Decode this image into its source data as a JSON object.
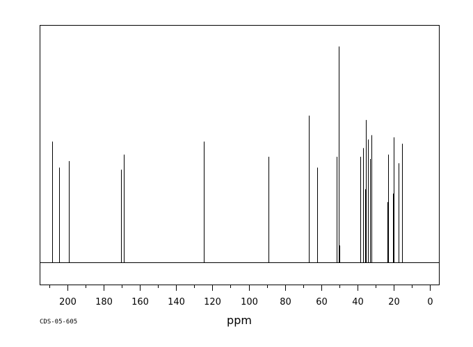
{
  "chart_data": {
    "type": "line",
    "subtype": "nmr-stick-spectrum",
    "title": "",
    "xlabel": "ppm",
    "ylabel": "",
    "xlim": [
      215,
      -5
    ],
    "x_reversed": true,
    "ylim": [
      0,
      1.1
    ],
    "grid": false,
    "x_ticks": [
      200,
      180,
      160,
      140,
      120,
      100,
      80,
      60,
      40,
      20,
      0
    ],
    "x_minor_step": 10,
    "peaks": [
      {
        "ppm": 208.5,
        "height": 0.56
      },
      {
        "ppm": 204.5,
        "height": 0.44
      },
      {
        "ppm": 199.2,
        "height": 0.47
      },
      {
        "ppm": 170.3,
        "height": 0.43
      },
      {
        "ppm": 168.8,
        "height": 0.5
      },
      {
        "ppm": 124.8,
        "height": 0.05
      },
      {
        "ppm": 124.6,
        "height": 0.56
      },
      {
        "ppm": 89.2,
        "height": 0.49
      },
      {
        "ppm": 66.8,
        "height": 0.68
      },
      {
        "ppm": 62.3,
        "height": 0.44
      },
      {
        "ppm": 51.4,
        "height": 0.49
      },
      {
        "ppm": 50.3,
        "height": 1.0
      },
      {
        "ppm": 49.8,
        "height": 0.08
      },
      {
        "ppm": 38.3,
        "height": 0.49
      },
      {
        "ppm": 37.0,
        "height": 0.53
      },
      {
        "ppm": 35.6,
        "height": 0.34
      },
      {
        "ppm": 35.2,
        "height": 0.66
      },
      {
        "ppm": 34.0,
        "height": 0.57
      },
      {
        "ppm": 33.0,
        "height": 0.48
      },
      {
        "ppm": 32.3,
        "height": 0.59
      },
      {
        "ppm": 23.4,
        "height": 0.28
      },
      {
        "ppm": 23.0,
        "height": 0.5
      },
      {
        "ppm": 20.4,
        "height": 0.32
      },
      {
        "ppm": 20.0,
        "height": 0.58
      },
      {
        "ppm": 17.4,
        "height": 0.46
      },
      {
        "ppm": 15.3,
        "height": 0.55
      }
    ]
  },
  "footer": {
    "code": "CDS-05-605"
  },
  "colors": {
    "line": "#000000",
    "background": "#ffffff"
  }
}
